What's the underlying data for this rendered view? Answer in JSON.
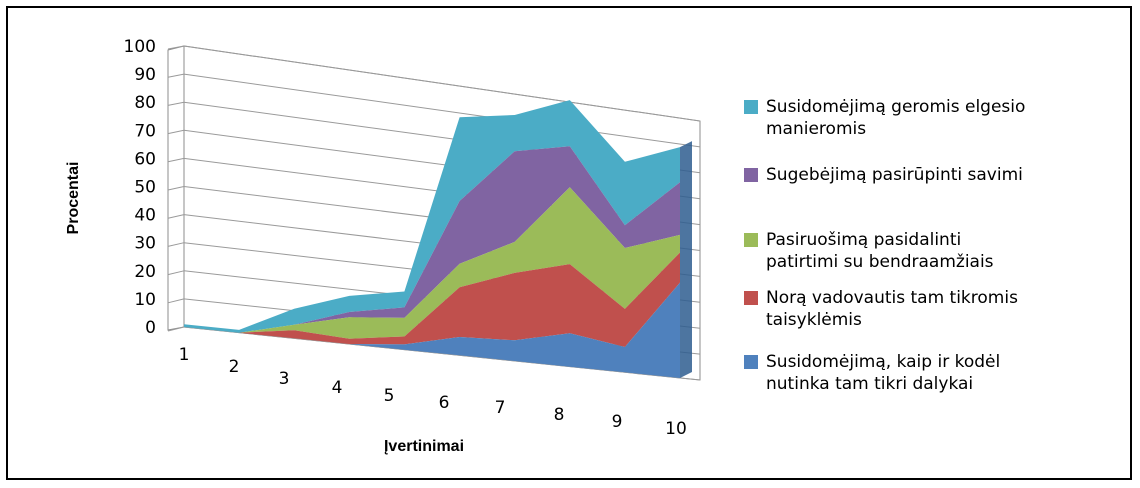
{
  "chart_data": {
    "type": "area",
    "stacked": true,
    "three_d": true,
    "xlabel": "Įvertinimai",
    "ylabel": "Procentai",
    "ylim": [
      0,
      100
    ],
    "yticks": [
      0,
      10,
      20,
      30,
      40,
      50,
      60,
      70,
      80,
      90,
      100
    ],
    "categories": [
      "1",
      "2",
      "3",
      "4",
      "5",
      "6",
      "7",
      "8",
      "9",
      "10"
    ],
    "grid": true,
    "legend_position": "right",
    "series": [
      {
        "name": "Susidomėjimą, kaip ir kodėl nutinka tam tikri dalykai",
        "name_lines": [
          "Susidomėjimą, kaip ir kodėl",
          "nutinka tam tikri dalykai"
        ],
        "color": "#4f81bd",
        "values": [
          0,
          0,
          0,
          0,
          2,
          7,
          8,
          13,
          10,
          38
        ]
      },
      {
        "name": "Norą vadovautis tam tikromis taisyklėmis",
        "name_lines": [
          "Norą  vadovautis tam tikromis",
          "taisyklėmis"
        ],
        "color": "#c0504d",
        "values": [
          0,
          0,
          3,
          2,
          3,
          19,
          26,
          27,
          15,
          12
        ]
      },
      {
        "name": "Pasiruošimą pasidalinti patirtimi su bendraamžiais",
        "name_lines": [
          "Pasiruošimą pasidalinti",
          "patirtimi su bendraamžiais"
        ],
        "color": "#9bbb59",
        "values": [
          0,
          0,
          2,
          8,
          7,
          9,
          12,
          30,
          24,
          7
        ]
      },
      {
        "name": "Sugebėjimą pasirūpinti savimi",
        "name_lines": [
          "Sugebėjimą pasirūpinti savimi"
        ],
        "color": "#8064a2",
        "values": [
          0,
          0,
          0,
          2,
          4,
          24,
          35,
          16,
          9,
          21
        ]
      },
      {
        "name": "Susidomėjimą geromis elgesio manieromis",
        "name_lines": [
          "Susidomėjimą geromis elgesio",
          "manieromis"
        ],
        "color": "#4bacc6",
        "values": [
          1,
          1,
          6,
          6,
          6,
          32,
          14,
          18,
          25,
          14
        ]
      }
    ]
  }
}
